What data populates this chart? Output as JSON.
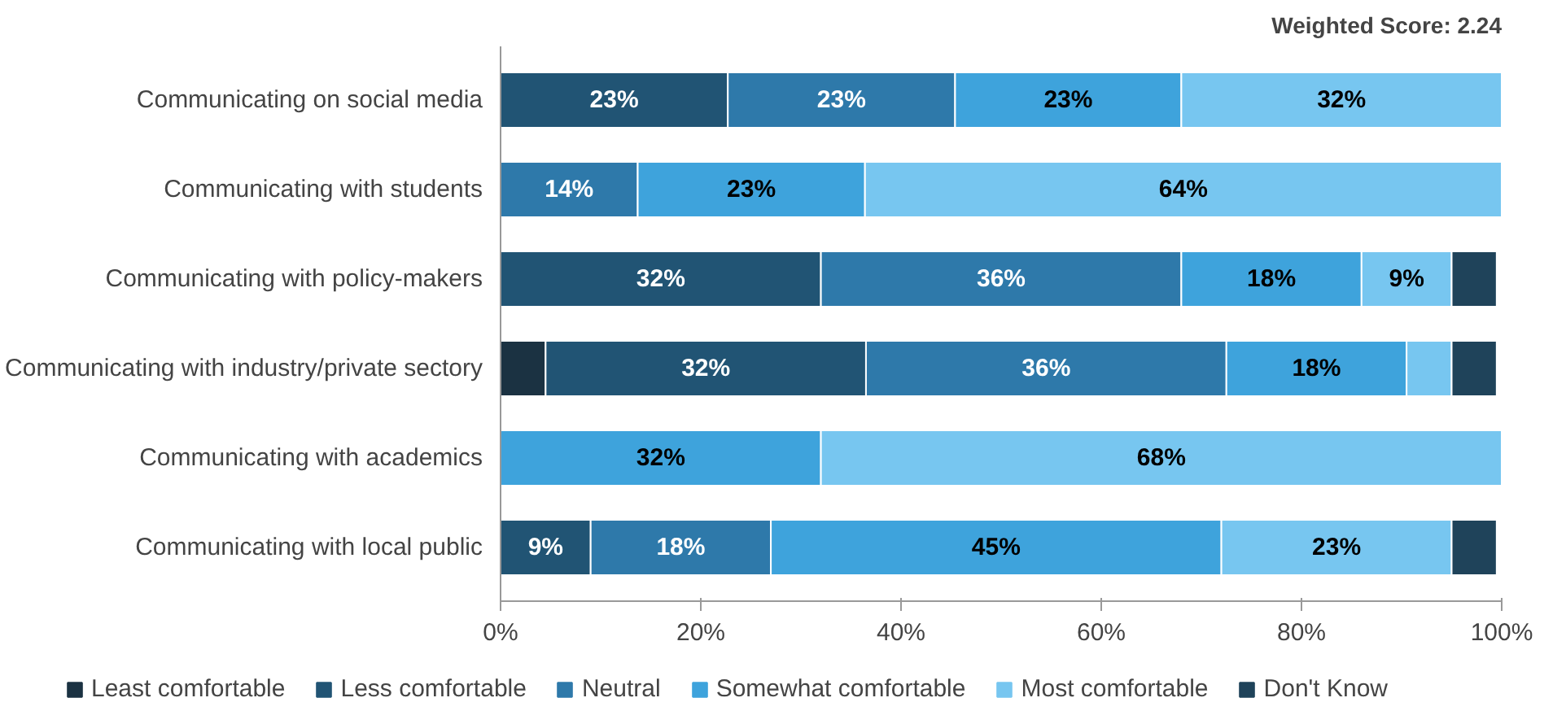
{
  "chart_data": {
    "type": "bar",
    "orientation": "horizontal",
    "stacked": true,
    "categories": [
      "Communicating on social media",
      "Communicating with students",
      "Communicating with policy-makers",
      "Communicating with industry/private sectory",
      "Communicating with academics",
      "Communicating with local public"
    ],
    "series": [
      {
        "name": "Least comfortable",
        "color": "#1b3242",
        "values": [
          null,
          null,
          null,
          4.5,
          null,
          null
        ],
        "value_labels": [
          null,
          null,
          null,
          null,
          null,
          null
        ]
      },
      {
        "name": "Less comfortable",
        "color": "#215474",
        "values": [
          22.7,
          null,
          32,
          32,
          null,
          9
        ],
        "value_labels": [
          "23%",
          null,
          "32%",
          "32%",
          null,
          "9%"
        ]
      },
      {
        "name": "Neutral",
        "color": "#2e79aa",
        "values": [
          22.7,
          13.7,
          36,
          36,
          null,
          18
        ],
        "value_labels": [
          "23%",
          "14%",
          "36%",
          "36%",
          null,
          "18%"
        ]
      },
      {
        "name": "Somewhat comfortable",
        "color": "#3ea3dc",
        "values": [
          22.6,
          22.7,
          18,
          18,
          32,
          45
        ],
        "value_labels": [
          "23%",
          "23%",
          "18%",
          "18%",
          "32%",
          "45%"
        ]
      },
      {
        "name": "Most comfortable",
        "color": "#77c6f0",
        "values": [
          32,
          63.6,
          9,
          4.5,
          68,
          23
        ],
        "value_labels": [
          "32%",
          "64%",
          "9%",
          null,
          "68%",
          "23%"
        ]
      },
      {
        "name": "Don't Know",
        "color": "#1f435a",
        "values": [
          null,
          null,
          4.5,
          4.5,
          null,
          4.5
        ],
        "value_labels": [
          null,
          null,
          null,
          null,
          null,
          null
        ]
      }
    ],
    "xlim": [
      0,
      100
    ],
    "xticks": [
      {
        "value": 0,
        "label": "0%"
      },
      {
        "value": 20,
        "label": "20%"
      },
      {
        "value": 40,
        "label": "40%"
      },
      {
        "value": 60,
        "label": "60%"
      },
      {
        "value": 80,
        "label": "80%"
      },
      {
        "value": 100,
        "label": "100%"
      }
    ],
    "annotations": [
      "Weighted Score: 2.24"
    ],
    "legend": "bottom",
    "grid": false
  }
}
